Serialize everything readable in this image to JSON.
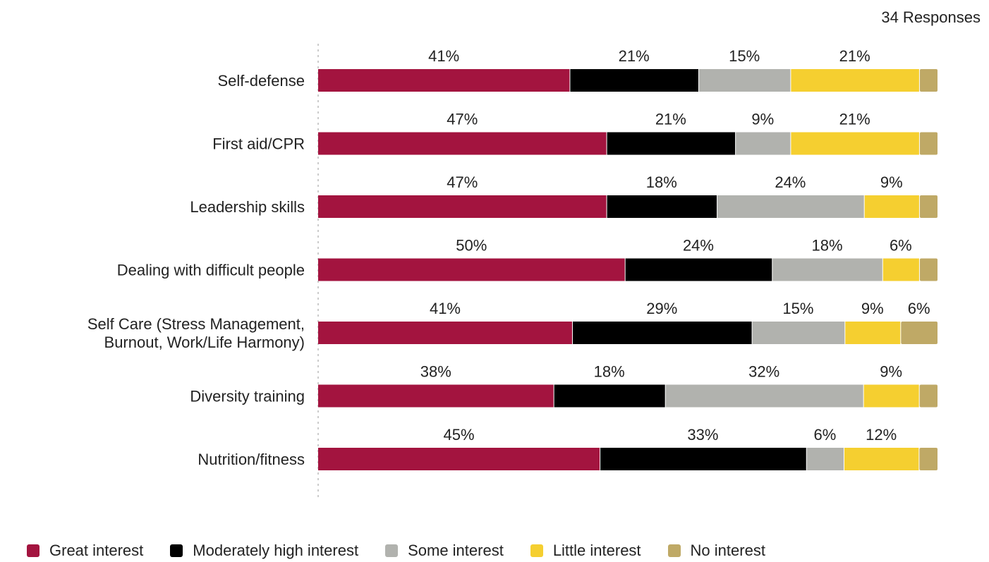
{
  "responses_label": "34 Responses",
  "chart_data": {
    "type": "bar",
    "orientation": "horizontal",
    "stacked": true,
    "percent_stacked": true,
    "categories": [
      [
        "Self-defense"
      ],
      [
        "First aid/CPR"
      ],
      [
        "Leadership skills"
      ],
      [
        "Dealing with difficult people"
      ],
      [
        "Self Care (Stress Management,",
        "Burnout, Work/Life Harmony)"
      ],
      [
        "Diversity training"
      ],
      [
        "Nutrition/fitness"
      ]
    ],
    "series": [
      {
        "name": "Great interest",
        "color": "#A3143F",
        "values": [
          41,
          47,
          47,
          50,
          41,
          38,
          45
        ],
        "labels": [
          "41%",
          "47%",
          "47%",
          "50%",
          "41%",
          "38%",
          "45%"
        ]
      },
      {
        "name": "Moderately high interest",
        "color": "#000000",
        "values": [
          21,
          21,
          18,
          24,
          29,
          18,
          33
        ],
        "labels": [
          "21%",
          "21%",
          "18%",
          "24%",
          "29%",
          "18%",
          "33%"
        ]
      },
      {
        "name": "Some interest",
        "color": "#B1B2AE",
        "values": [
          15,
          9,
          24,
          18,
          15,
          32,
          6
        ],
        "labels": [
          "15%",
          "9%",
          "24%",
          "18%",
          "15%",
          "32%",
          "6%"
        ]
      },
      {
        "name": "Little interest",
        "color": "#F5CF30",
        "values": [
          21,
          21,
          9,
          6,
          9,
          9,
          12
        ],
        "labels": [
          "21%",
          "21%",
          "9%",
          "6%",
          "9%",
          "9%",
          "12%"
        ]
      },
      {
        "name": "No interest",
        "color": "#BFA966",
        "values": [
          3,
          3,
          3,
          3,
          6,
          3,
          3
        ],
        "labels": [
          "",
          "",
          "",
          "",
          "6%",
          "",
          ""
        ]
      }
    ],
    "xlim": [
      0,
      100
    ],
    "grid": false,
    "legend_position": "bottom-left"
  }
}
